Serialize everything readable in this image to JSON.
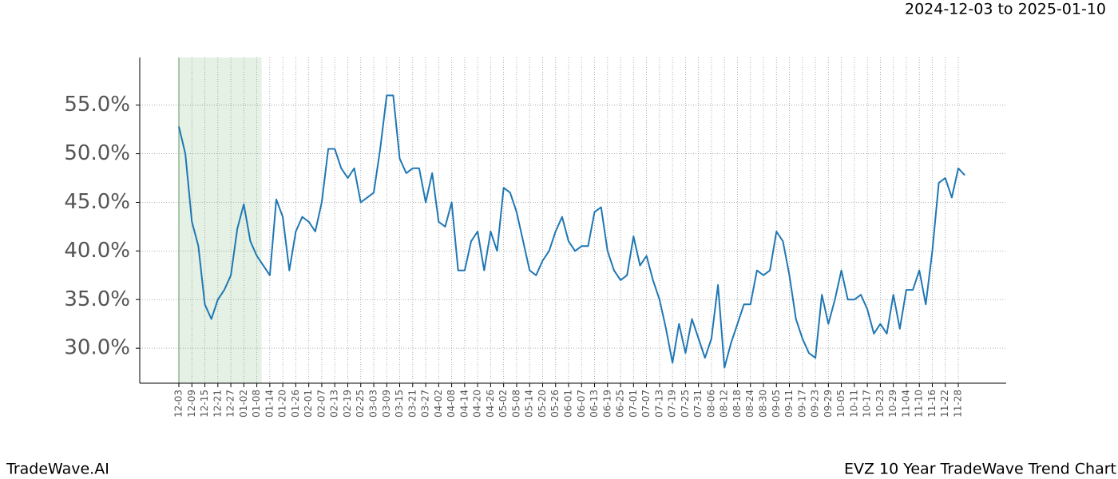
{
  "chart_data": {
    "type": "line",
    "date_range": "2024-12-03 to 2025-01-10",
    "brand": "TradeWave.AI",
    "title": "EVZ 10 Year TradeWave Trend Chart",
    "categories": [
      "12-03",
      null,
      "12-09",
      null,
      "12-15",
      null,
      "12-21",
      null,
      "12-27",
      null,
      "01-02",
      null,
      "01-08",
      null,
      "01-14",
      null,
      "01-20",
      null,
      "01-26",
      null,
      "02-01",
      null,
      "02-07",
      null,
      "02-13",
      null,
      "02-19",
      null,
      "02-25",
      null,
      "03-03",
      null,
      "03-09",
      null,
      "03-15",
      null,
      "03-21",
      null,
      "03-27",
      null,
      "04-02",
      null,
      "04-08",
      null,
      "04-14",
      null,
      "04-20",
      null,
      "04-26",
      null,
      "05-02",
      null,
      "05-08",
      null,
      "05-14",
      null,
      "05-20",
      null,
      "05-26",
      null,
      "06-01",
      null,
      "06-07",
      null,
      "06-13",
      null,
      "06-19",
      null,
      "06-25",
      null,
      "07-01",
      null,
      "07-07",
      null,
      "07-13",
      null,
      "07-19",
      null,
      "07-25",
      null,
      "07-31",
      null,
      "08-06",
      null,
      "08-12",
      null,
      "08-18",
      null,
      "08-24",
      null,
      "08-30",
      null,
      "09-05",
      null,
      "09-11",
      null,
      "09-17",
      null,
      "09-23",
      null,
      "09-29",
      null,
      "10-05",
      null,
      "10-11",
      null,
      "10-17",
      null,
      "10-23",
      null,
      "10-29",
      null,
      "11-04",
      null,
      "11-10",
      null,
      "11-16",
      null,
      "11-22",
      null,
      "11-28",
      null
    ],
    "series": [
      {
        "name": "EVZ",
        "color": "#1f77b4",
        "values": [
          52.8,
          50.0,
          43,
          40.5,
          34.5,
          33,
          35,
          36,
          37.5,
          42.3,
          44.8,
          41,
          39.5,
          38.5,
          37.5,
          45.3,
          43.5,
          38,
          42,
          43.5,
          43,
          42,
          45,
          50.5,
          50.5,
          48.5,
          47.5,
          48.5,
          45,
          45.5,
          46,
          50.5,
          56,
          56,
          49.5,
          48,
          48.5,
          48.5,
          45,
          48,
          43,
          42.5,
          45,
          38,
          38,
          41,
          42,
          38,
          42,
          40,
          46.5,
          46,
          44,
          41,
          38,
          37.5,
          39,
          40,
          42,
          43.5,
          41,
          40,
          40.5,
          40.5,
          44,
          44.5,
          40,
          38,
          37,
          37.5,
          41.5,
          38.5,
          39.5,
          37,
          35,
          32,
          28.5,
          32.5,
          29.5,
          33,
          31,
          29,
          31,
          36.5,
          28,
          30.5,
          32.5,
          34.5,
          34.5,
          38,
          37.5,
          38,
          42,
          41,
          37.5,
          33,
          31,
          29.5,
          29,
          35.5,
          32.5,
          35,
          38,
          35,
          35,
          35.5,
          34,
          31.5,
          32.5,
          31.5,
          35.5,
          32,
          36,
          36,
          38,
          34.5,
          40,
          47,
          47.5,
          45.5,
          48.5,
          47.8
        ]
      }
    ],
    "highlight": [
      "12-03",
      "01-08"
    ],
    "highlight_color": "#d6ead6",
    "ylim": [
      26.4,
      59.9
    ],
    "yticks": [
      {
        "value": 30,
        "label": "30.0%"
      },
      {
        "value": 35,
        "label": "35.0%"
      },
      {
        "value": 40,
        "label": "40.0%"
      },
      {
        "value": 45,
        "label": "45.0%"
      },
      {
        "value": 50,
        "label": "50.0%"
      },
      {
        "value": 55,
        "label": "55.0%"
      }
    ],
    "grid": true
  }
}
